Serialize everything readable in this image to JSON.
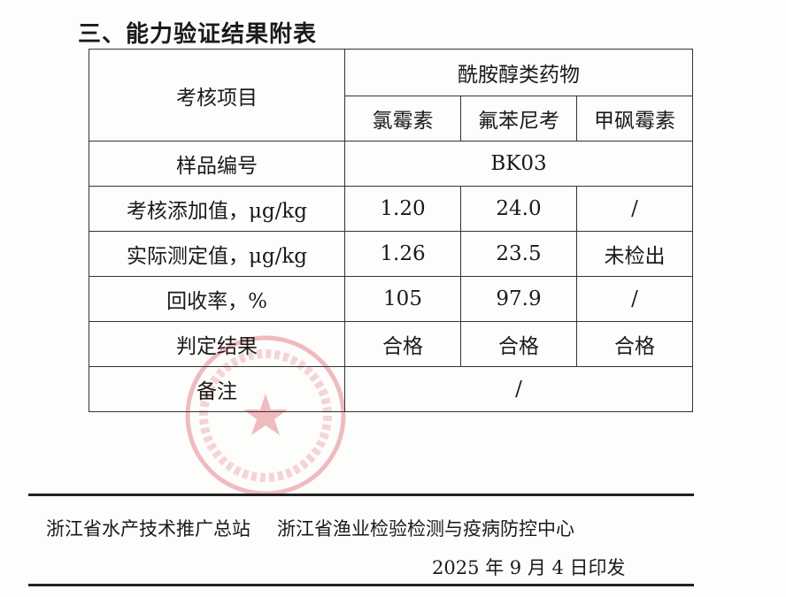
{
  "section_title": "三、能力验证结果附表",
  "table": {
    "header_item": "考核项目",
    "group_header": "酰胺醇类药物",
    "drugs": [
      "氯霉素",
      "氟苯尼考",
      "甲砜霉素"
    ],
    "sample_label": "样品编号",
    "sample_value": "BK03",
    "rows": [
      {
        "label": "考核添加值，μg/kg",
        "values": [
          "1.20",
          "24.0",
          "/"
        ]
      },
      {
        "label": "实际测定值，μg/kg",
        "values": [
          "1.26",
          "23.5",
          "未检出"
        ]
      },
      {
        "label": "回收率，%",
        "values": [
          "105",
          "97.9",
          "/"
        ]
      },
      {
        "label": "判定结果",
        "values": [
          "合格",
          "合格",
          "合格"
        ]
      }
    ],
    "remark_label": "备注",
    "remark_value": "/"
  },
  "footer": {
    "org1": "浙江省水产技术推广总站",
    "org2": "浙江省渔业检验检测与疫病防控中心",
    "date": "2025 年 9 月 4 日印发"
  },
  "stamp_color": "#d9434f"
}
